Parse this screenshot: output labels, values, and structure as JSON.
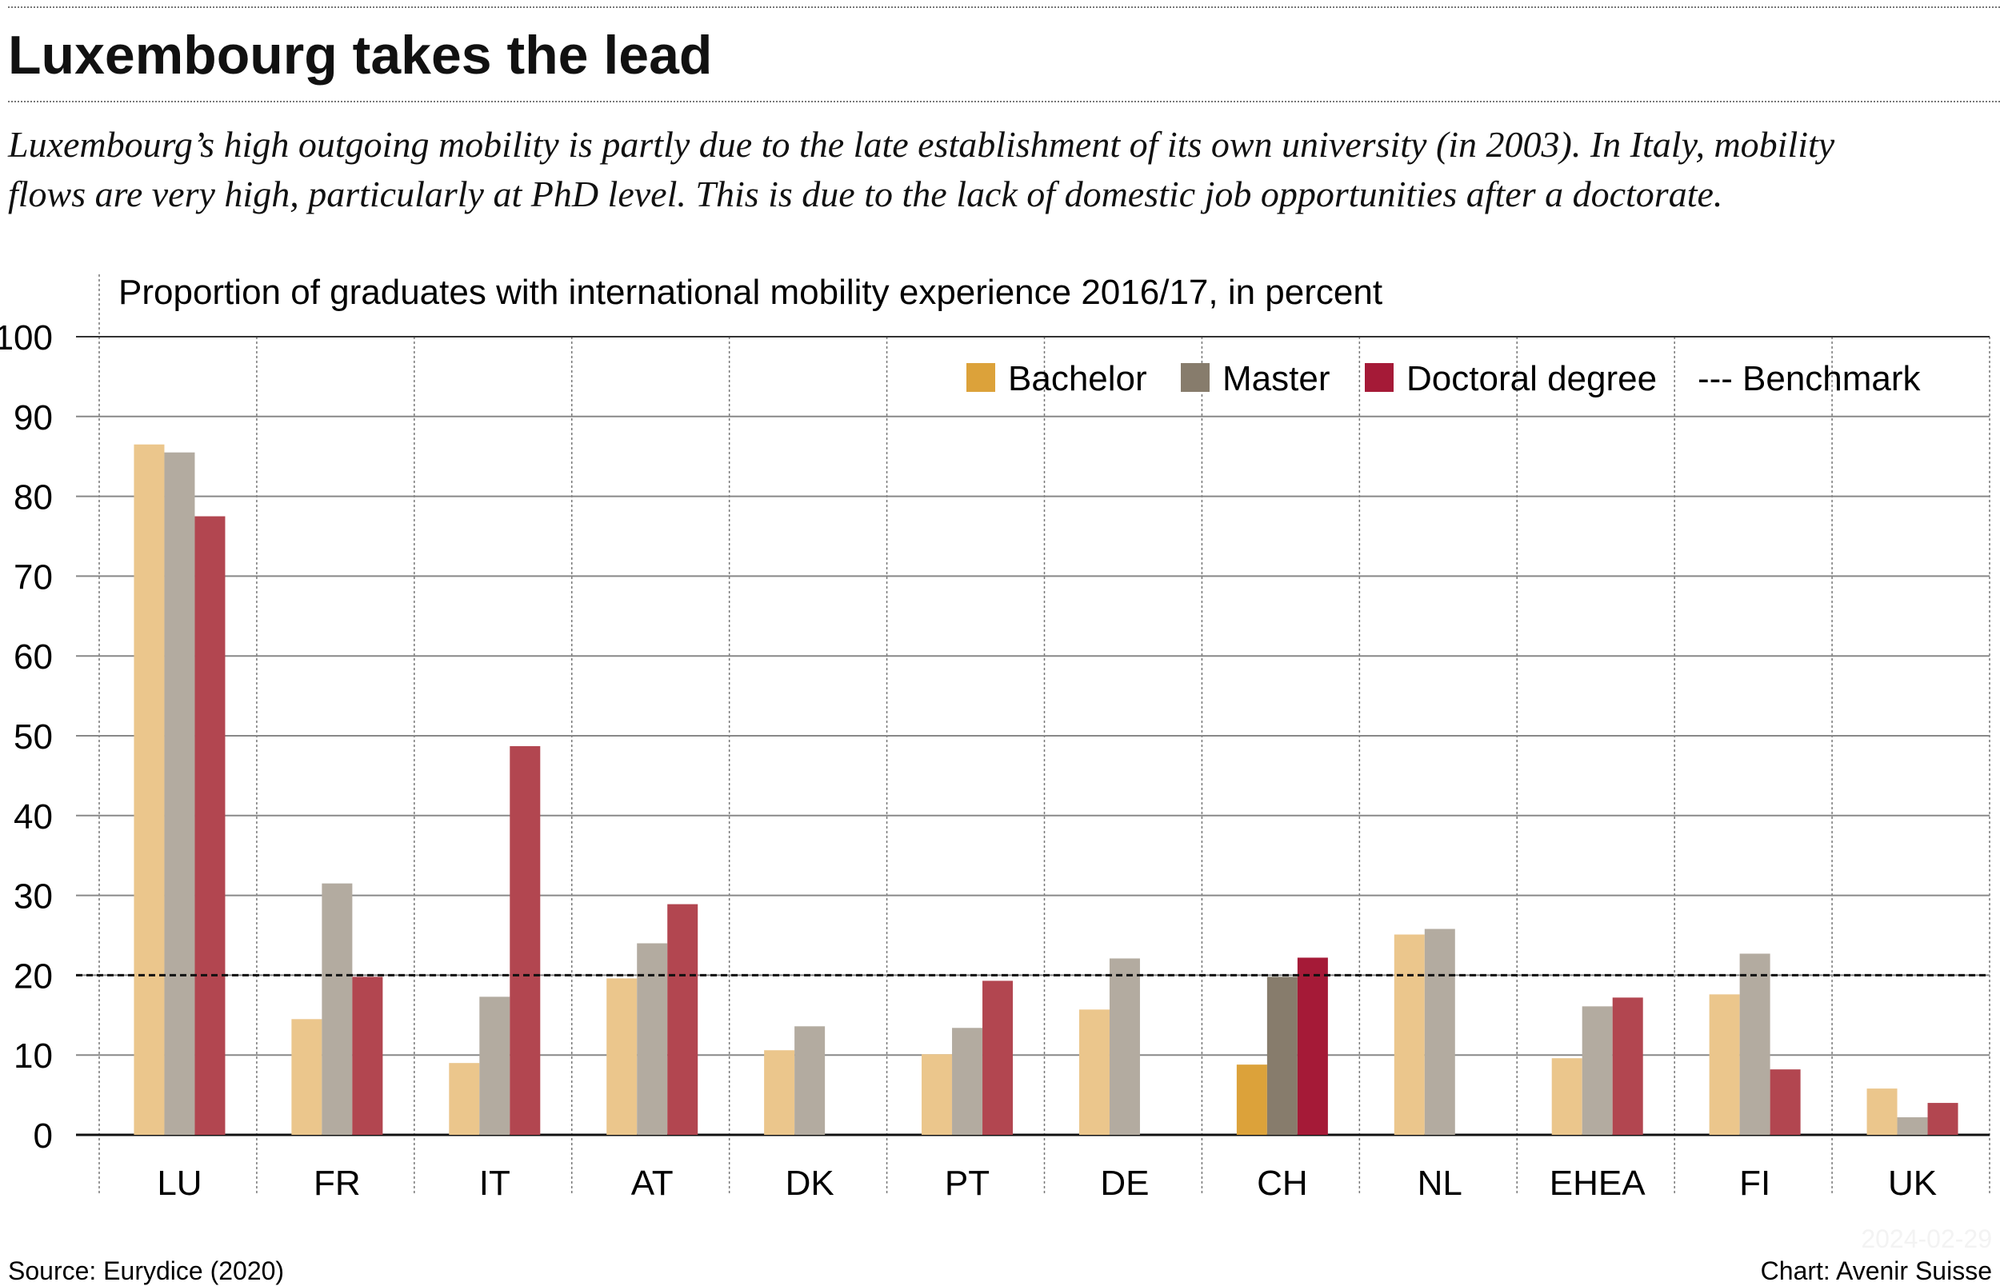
{
  "title": "Luxembourg takes the lead",
  "subtitle_lines": [
    "Luxembourg’s high outgoing mobility is partly due to the late establishment of its own university (in 2003). In Italy, mobility",
    "flows are very high, particularly at PhD level. This is due to the lack of domestic job opportunities after a doctorate."
  ],
  "footer": {
    "source": "Source: Eurydice (2020)",
    "credit": "Chart: Avenir Suisse",
    "watermark": "2024-02-29"
  },
  "chart_data": {
    "type": "bar",
    "title": "Proportion of graduates with international mobility experience 2016/17, in percent",
    "categories": [
      "LU",
      "FR",
      "IT",
      "AT",
      "DK",
      "PT",
      "DE",
      "CH",
      "NL",
      "EHEA",
      "FI",
      "UK"
    ],
    "highlight_category": "CH",
    "ylim": [
      0,
      100
    ],
    "yticks": [
      0,
      10,
      20,
      30,
      40,
      50,
      60,
      70,
      80,
      90,
      100
    ],
    "grid": true,
    "legend_placement": "top-right",
    "series": [
      {
        "name": "Bachelor",
        "color": "#EBC68C",
        "highlight_color": "#DCA23A",
        "values": [
          86.5,
          14.5,
          9.0,
          19.6,
          10.6,
          10.1,
          15.7,
          8.8,
          25.1,
          9.6,
          17.6,
          5.8
        ]
      },
      {
        "name": "Master",
        "color": "#B3ABA0",
        "highlight_color": "#877C6C",
        "values": [
          85.5,
          31.5,
          17.3,
          24.0,
          13.6,
          13.4,
          22.1,
          19.8,
          25.8,
          16.1,
          22.7,
          2.2
        ]
      },
      {
        "name": "Doctoral degree",
        "color": "#B24650",
        "highlight_color": "#A51A37",
        "values": [
          77.5,
          19.8,
          48.7,
          28.9,
          null,
          19.3,
          null,
          22.2,
          null,
          17.2,
          8.2,
          4.0
        ]
      }
    ],
    "benchmark": {
      "name": "Benchmark",
      "value": 20,
      "legend_symbol": "---"
    }
  }
}
